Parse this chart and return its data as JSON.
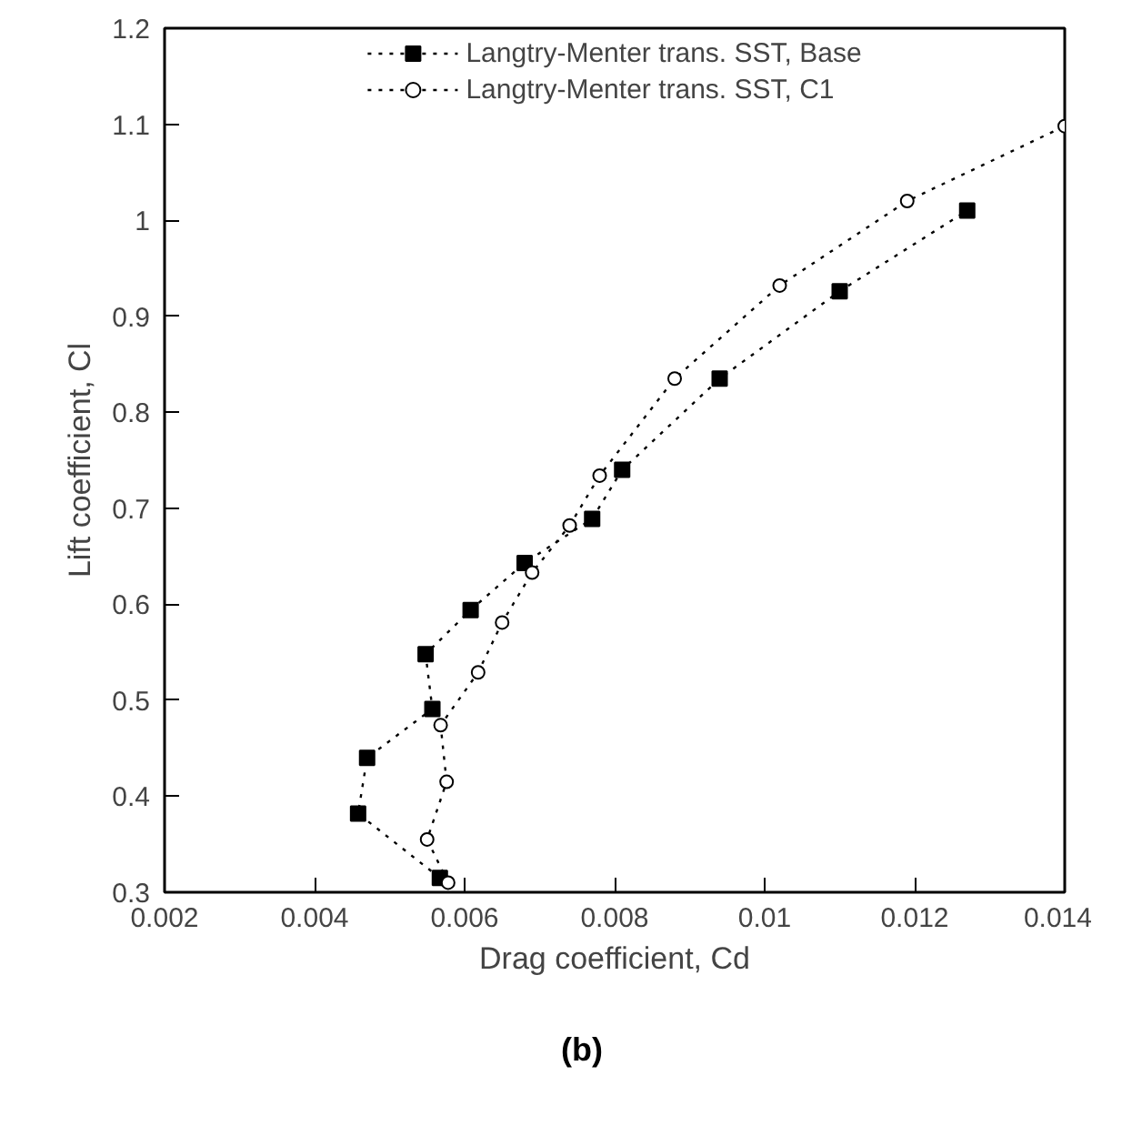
{
  "chart_data": {
    "type": "line",
    "xlabel": "Drag coefficient, Cd",
    "ylabel": "Lift coefficient, Cl",
    "annotations": [
      "(b)"
    ],
    "xlim": [
      0.002,
      0.014
    ],
    "ylim": [
      0.3,
      1.2
    ],
    "xticks": [
      0.002,
      0.004,
      0.006,
      0.008,
      0.01,
      0.012,
      0.014
    ],
    "yticks": [
      0.3,
      0.4,
      0.5,
      0.6,
      0.7,
      0.8,
      0.9,
      1,
      1.1,
      1.2
    ],
    "grid": false,
    "legend": "top",
    "line_style": "dotted",
    "series": [
      {
        "name": "Langtry-Menter trans. SST, Base",
        "color": "#000000",
        "marker": "square",
        "x": [
          0.00567,
          0.00458,
          0.0047,
          0.00557,
          0.00548,
          0.00608,
          0.0068,
          0.0077,
          0.0081,
          0.0094,
          0.011,
          0.0127
        ],
        "values": [
          0.315,
          0.382,
          0.44,
          0.491,
          0.548,
          0.594,
          0.643,
          0.689,
          0.74,
          0.835,
          0.926,
          1.01
        ]
      },
      {
        "name": "Langtry-Menter trans. SST, C1",
        "color": "#000000",
        "marker": "circle",
        "x": [
          0.00578,
          0.0055,
          0.00576,
          0.00568,
          0.00618,
          0.0065,
          0.0069,
          0.0074,
          0.0078,
          0.0088,
          0.0102,
          0.0119,
          0.014
        ],
        "values": [
          0.31,
          0.355,
          0.415,
          0.474,
          0.529,
          0.581,
          0.633,
          0.682,
          0.734,
          0.835,
          0.932,
          1.02,
          1.098
        ]
      }
    ]
  }
}
